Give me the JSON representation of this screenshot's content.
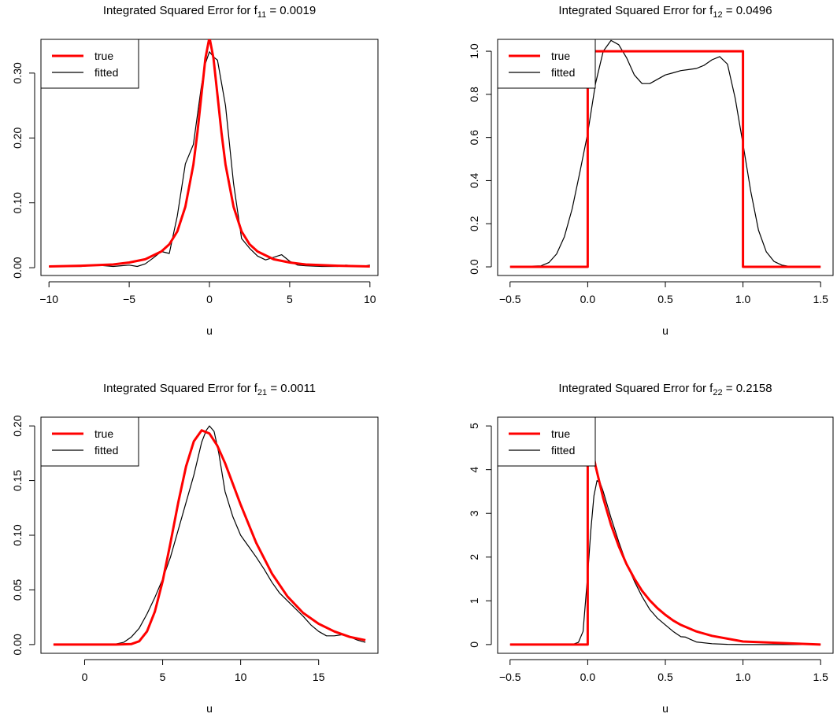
{
  "chart_data": [
    {
      "type": "line",
      "title": "Integrated Squared Error for f",
      "title_sub": "11",
      "title_value": " = 0.0019",
      "xlabel": "u",
      "ylabel": "",
      "xlim": [
        -10.5,
        10.5
      ],
      "ylim": [
        -0.012,
        0.352
      ],
      "xticks": [
        -10,
        -5,
        0,
        5,
        10
      ],
      "xtick_labels": [
        "−10",
        "−5",
        "0",
        "5",
        "10"
      ],
      "yticks": [
        0.0,
        0.1,
        0.2,
        0.3
      ],
      "ytick_labels": [
        "0.00",
        "0.10",
        "0.20",
        "0.30"
      ],
      "grid": false,
      "legend": {
        "position": "top-left",
        "labels": [
          "true",
          "fitted"
        ]
      },
      "series": [
        {
          "name": "true",
          "color": "#ff0000",
          "x": [
            -10,
            -8,
            -6,
            -5,
            -4,
            -3,
            -2.5,
            -2,
            -1.5,
            -1,
            -0.75,
            -0.5,
            -0.25,
            0,
            0.25,
            0.5,
            0.75,
            1,
            1.5,
            2,
            2.5,
            3,
            4,
            5,
            6,
            8,
            10
          ],
          "y": [
            0.002,
            0.003,
            0.005,
            0.008,
            0.013,
            0.025,
            0.036,
            0.056,
            0.094,
            0.159,
            0.208,
            0.266,
            0.323,
            0.355,
            0.323,
            0.266,
            0.208,
            0.159,
            0.094,
            0.056,
            0.036,
            0.025,
            0.013,
            0.008,
            0.005,
            0.003,
            0.002
          ]
        },
        {
          "name": "fitted",
          "color": "#000000",
          "x": [
            -10,
            -8,
            -7,
            -6.5,
            -6,
            -5.5,
            -5,
            -4.5,
            -4,
            -3.5,
            -3,
            -2.5,
            -2,
            -1.5,
            -1,
            -0.5,
            -0.25,
            0,
            0.25,
            0.5,
            1,
            1.5,
            2,
            2.5,
            3,
            3.5,
            4,
            4.5,
            5,
            5.5,
            6,
            7,
            8,
            8.5,
            9,
            9.5,
            10
          ],
          "y": [
            0.002,
            0.002,
            0.004,
            0.003,
            0.002,
            0.003,
            0.004,
            0.002,
            0.006,
            0.015,
            0.025,
            0.022,
            0.08,
            0.16,
            0.19,
            0.28,
            0.315,
            0.333,
            0.325,
            0.32,
            0.25,
            0.13,
            0.045,
            0.03,
            0.018,
            0.012,
            0.016,
            0.02,
            0.01,
            0.004,
            0.003,
            0.002,
            0.002,
            0.004,
            0.003,
            0.002,
            0.004
          ]
        }
      ]
    },
    {
      "type": "line",
      "title": "Integrated Squared Error for f",
      "title_sub": "12",
      "title_value": " = 0.0496",
      "xlabel": "u",
      "ylabel": "",
      "xlim": [
        -0.58,
        1.58
      ],
      "ylim": [
        -0.04,
        1.055
      ],
      "xticks": [
        -0.5,
        0.0,
        0.5,
        1.0,
        1.5
      ],
      "xtick_labels": [
        "−0.5",
        "0.0",
        "0.5",
        "1.0",
        "1.5"
      ],
      "yticks": [
        0.0,
        0.2,
        0.4,
        0.6,
        0.8,
        1.0
      ],
      "ytick_labels": [
        "0.0",
        "0.2",
        "0.4",
        "0.6",
        "0.8",
        "1.0"
      ],
      "grid": false,
      "legend": {
        "position": "top-left",
        "labels": [
          "true",
          "fitted"
        ]
      },
      "series": [
        {
          "name": "true",
          "color": "#ff0000",
          "x": [
            -0.5,
            0,
            0,
            1,
            1,
            1.5
          ],
          "y": [
            0,
            0,
            1,
            1,
            0,
            0
          ]
        },
        {
          "name": "fitted",
          "color": "#000000",
          "x": [
            -0.5,
            -0.3,
            -0.25,
            -0.2,
            -0.15,
            -0.1,
            -0.05,
            0,
            0.05,
            0.1,
            0.15,
            0.2,
            0.25,
            0.3,
            0.35,
            0.4,
            0.45,
            0.5,
            0.55,
            0.6,
            0.65,
            0.7,
            0.75,
            0.8,
            0.85,
            0.9,
            0.95,
            1,
            1.05,
            1.1,
            1.15,
            1.2,
            1.25,
            1.3,
            1.5
          ],
          "y": [
            0,
            0.005,
            0.02,
            0.06,
            0.14,
            0.27,
            0.44,
            0.62,
            0.85,
            1.0,
            1.05,
            1.03,
            0.97,
            0.89,
            0.85,
            0.85,
            0.87,
            0.89,
            0.9,
            0.91,
            0.915,
            0.92,
            0.935,
            0.96,
            0.975,
            0.94,
            0.78,
            0.57,
            0.35,
            0.17,
            0.07,
            0.025,
            0.008,
            0.002,
            0
          ]
        }
      ]
    },
    {
      "type": "line",
      "title": "Integrated Squared Error for f",
      "title_sub": "21",
      "title_value": " = 0.0011",
      "xlabel": "u",
      "ylabel": "",
      "xlim": [
        -2.8,
        18.8
      ],
      "ylim": [
        -0.008,
        0.208
      ],
      "xticks": [
        0,
        5,
        10,
        15
      ],
      "xtick_labels": [
        "0",
        "5",
        "10",
        "15"
      ],
      "yticks": [
        0.0,
        0.05,
        0.1,
        0.15,
        0.2
      ],
      "ytick_labels": [
        "0.00",
        "0.05",
        "0.10",
        "0.15",
        "0.20"
      ],
      "grid": false,
      "legend": {
        "position": "top-left",
        "labels": [
          "true",
          "fitted"
        ]
      },
      "series": [
        {
          "name": "true",
          "color": "#ff0000",
          "x": [
            -2,
            0,
            2,
            3,
            3.5,
            4,
            4.5,
            5,
            5.5,
            6,
            6.5,
            7,
            7.5,
            8,
            8.5,
            9,
            9.5,
            10,
            11,
            12,
            13,
            14,
            15,
            16,
            17,
            18
          ],
          "y": [
            0,
            0,
            0,
            0.0005,
            0.003,
            0.012,
            0.03,
            0.058,
            0.093,
            0.13,
            0.163,
            0.186,
            0.196,
            0.193,
            0.182,
            0.166,
            0.147,
            0.128,
            0.093,
            0.065,
            0.044,
            0.029,
            0.019,
            0.012,
            0.007,
            0.004
          ]
        },
        {
          "name": "fitted",
          "color": "#000000",
          "x": [
            -2,
            1,
            2,
            2.5,
            3,
            3.5,
            4,
            4.5,
            5,
            5.5,
            6,
            6.5,
            7,
            7.5,
            7.8,
            8,
            8.3,
            8.6,
            9,
            9.5,
            10,
            10.5,
            11,
            11.5,
            12,
            12.5,
            13,
            13.5,
            14,
            14.5,
            15,
            15.5,
            16,
            16.5,
            17,
            17.5,
            18
          ],
          "y": [
            0,
            0,
            0.0005,
            0.002,
            0.007,
            0.015,
            0.028,
            0.043,
            0.06,
            0.08,
            0.105,
            0.13,
            0.155,
            0.185,
            0.196,
            0.2,
            0.195,
            0.175,
            0.14,
            0.117,
            0.1,
            0.09,
            0.08,
            0.069,
            0.057,
            0.047,
            0.04,
            0.033,
            0.026,
            0.018,
            0.012,
            0.008,
            0.008,
            0.009,
            0.007,
            0.004,
            0.002
          ]
        }
      ]
    },
    {
      "type": "line",
      "title": "Integrated Squared Error for f",
      "title_sub": "22",
      "title_value": " = 0.2158",
      "xlabel": "u",
      "ylabel": "",
      "xlim": [
        -0.58,
        1.58
      ],
      "ylim": [
        -0.2,
        5.2
      ],
      "xticks": [
        -0.5,
        0.0,
        0.5,
        1.0,
        1.5
      ],
      "xtick_labels": [
        "−0.5",
        "0.0",
        "0.5",
        "1.0",
        "1.5"
      ],
      "yticks": [
        0,
        1,
        2,
        3,
        4,
        5
      ],
      "ytick_labels": [
        "0",
        "1",
        "2",
        "3",
        "4",
        "5"
      ],
      "grid": false,
      "legend": {
        "position": "top-left",
        "labels": [
          "true",
          "fitted"
        ]
      },
      "series": [
        {
          "name": "true",
          "color": "#ff0000",
          "x": [
            -0.5,
            0,
            0,
            0.05,
            0.1,
            0.15,
            0.2,
            0.25,
            0.3,
            0.35,
            0.4,
            0.45,
            0.5,
            0.55,
            0.6,
            0.7,
            0.8,
            1,
            1.5
          ],
          "y": [
            0,
            0,
            5,
            4.09,
            3.35,
            2.74,
            2.25,
            1.84,
            1.51,
            1.23,
            1.01,
            0.83,
            0.68,
            0.55,
            0.45,
            0.3,
            0.2,
            0.07,
            0
          ]
        },
        {
          "name": "fitted",
          "color": "#000000",
          "x": [
            -0.5,
            -0.1,
            -0.06,
            -0.03,
            0,
            0.02,
            0.04,
            0.06,
            0.08,
            0.1,
            0.15,
            0.2,
            0.25,
            0.3,
            0.35,
            0.4,
            0.45,
            0.5,
            0.55,
            0.6,
            0.63,
            0.66,
            0.7,
            0.8,
            0.9,
            1,
            1.5
          ],
          "y": [
            0,
            0,
            0.05,
            0.3,
            1.6,
            2.6,
            3.4,
            3.75,
            3.7,
            3.5,
            2.9,
            2.35,
            1.85,
            1.45,
            1.1,
            0.8,
            0.6,
            0.45,
            0.3,
            0.18,
            0.17,
            0.12,
            0.06,
            0.02,
            0.005,
            0,
            0
          ]
        }
      ]
    }
  ]
}
